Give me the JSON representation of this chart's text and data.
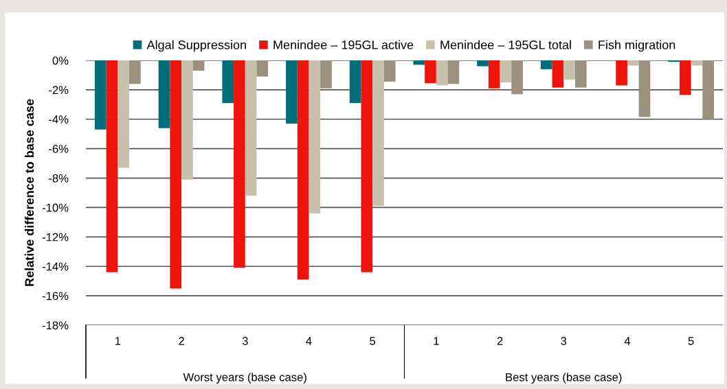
{
  "chart_data": {
    "type": "bar",
    "categories": [
      "1",
      "2",
      "3",
      "4",
      "5",
      "1",
      "2",
      "3",
      "4",
      "5"
    ],
    "series": [
      {
        "name": "Algal Suppression",
        "color": "#006d7a",
        "values": [
          -4.7,
          -4.6,
          -2.9,
          -4.3,
          -2.9,
          -0.3,
          -0.4,
          -0.6,
          0,
          -0.1
        ]
      },
      {
        "name": "Menindee – 195GL active",
        "color": "#ee140c",
        "values": [
          -14.4,
          -15.5,
          -14.1,
          -14.9,
          -14.4,
          -1.55,
          -1.9,
          -1.85,
          -1.7,
          -2.35
        ]
      },
      {
        "name": "Menindee – 195GL total",
        "color": "#c8c0ad",
        "values": [
          -7.3,
          -8.1,
          -9.2,
          -10.4,
          -9.9,
          -1.7,
          -1.5,
          -1.3,
          -0.35,
          -0.35
        ]
      },
      {
        "name": "Fish migration",
        "color": "#9c917e",
        "values": [
          -1.6,
          -0.7,
          -1.1,
          -1.9,
          -1.45,
          -1.6,
          -2.3,
          -1.85,
          -3.85,
          -4.0
        ]
      }
    ],
    "ylabel": "Relative difference to base case",
    "ylim": [
      -18,
      0
    ],
    "yticks": [
      {
        "value": 0,
        "label": "0%"
      },
      {
        "value": -2,
        "label": "-2%"
      },
      {
        "value": -4,
        "label": "-4%"
      },
      {
        "value": -6,
        "label": "-6%"
      },
      {
        "value": -8,
        "label": "-8%"
      },
      {
        "value": -10,
        "label": "-10%"
      },
      {
        "value": -12,
        "label": "-12%"
      },
      {
        "value": -14,
        "label": "-14%"
      },
      {
        "value": -16,
        "label": "-16%"
      },
      {
        "value": -18,
        "label": "-18%"
      }
    ],
    "annotations": [
      "Worst years (base case)",
      "Best years (base case)"
    ],
    "grid": "y",
    "legend": "top"
  }
}
